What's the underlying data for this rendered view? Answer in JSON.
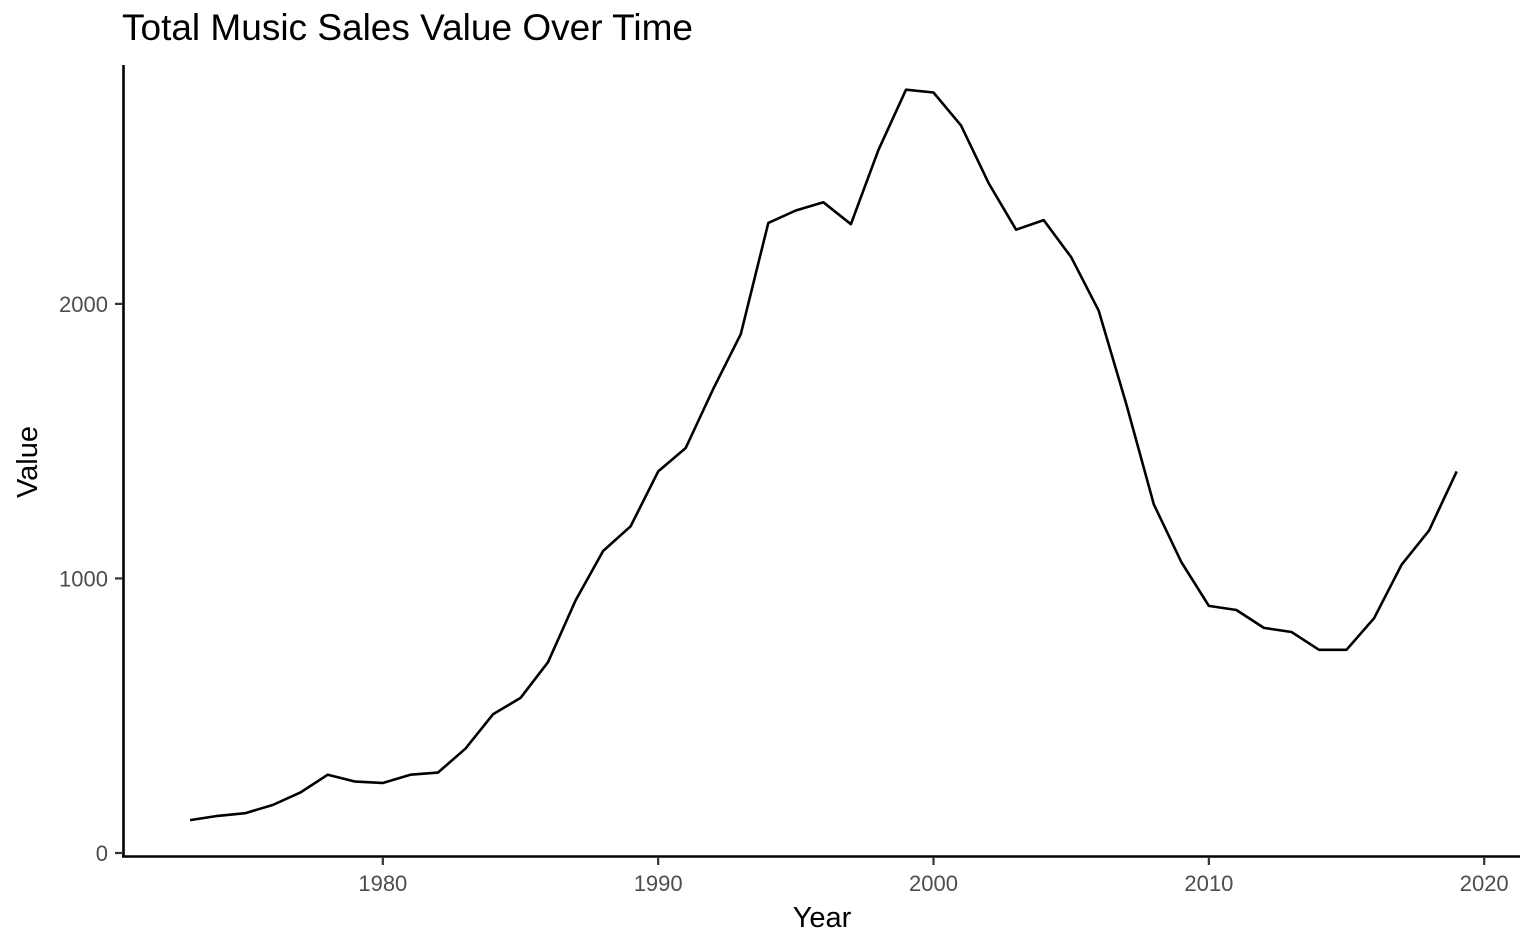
{
  "chart_data": {
    "type": "line",
    "title": "Total Music Sales Value Over Time",
    "xlabel": "Year",
    "ylabel": "Value",
    "xlim": [
      1970.6,
      2021.3
    ],
    "ylim": [
      0,
      2870
    ],
    "x_ticks": [
      1980,
      1990,
      2000,
      2010,
      2020
    ],
    "y_ticks": [
      0,
      1000,
      2000
    ],
    "grid": false,
    "legend": "none",
    "line_color": "#000000",
    "series": [
      {
        "x": [
          1973,
          1974,
          1975,
          1976,
          1977,
          1978,
          1979,
          1980,
          1981,
          1982,
          1983,
          1984,
          1985,
          1986,
          1987,
          1988,
          1989,
          1990,
          1991,
          1992,
          1993,
          1994,
          1995,
          1996,
          1997,
          1998,
          1999,
          2000,
          2001,
          2002,
          2003,
          2004,
          2005,
          2006,
          2007,
          2008,
          2009,
          2010,
          2011,
          2012,
          2013,
          2014,
          2015,
          2016,
          2017,
          2018,
          2019
        ],
        "values": [
          120,
          135,
          145,
          175,
          220,
          285,
          260,
          255,
          285,
          293,
          380,
          505,
          565,
          695,
          920,
          1100,
          1190,
          1390,
          1475,
          1690,
          1890,
          2295,
          2340,
          2370,
          2290,
          2560,
          2780,
          2770,
          2650,
          2440,
          2270,
          2305,
          2170,
          1975,
          1635,
          1270,
          1060,
          900,
          885,
          820,
          805,
          740,
          740,
          855,
          1050,
          1175,
          1390
        ]
      }
    ]
  }
}
